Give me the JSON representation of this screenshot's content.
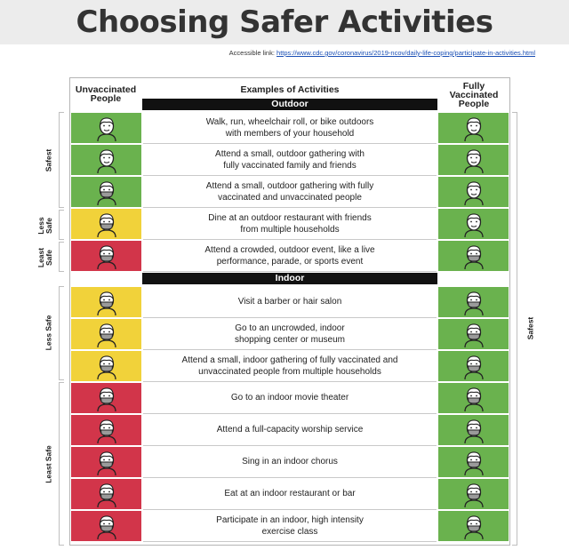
{
  "title": "Choosing Safer Activities",
  "accessible_label": "Accessible link:",
  "accessible_url": "https://www.cdc.gov/coronavirus/2019-ncov/daily-life-coping/participate-in-activities.html",
  "headers": {
    "unvaccinated": "Unvaccinated People",
    "examples": "Examples of Activities",
    "vaccinated": "Fully Vaccinated People"
  },
  "sections": {
    "outdoor": "Outdoor",
    "indoor": "Indoor"
  },
  "colors": {
    "green": "#6ab24e",
    "yellow": "#f1d23a",
    "red": "#d2354a"
  },
  "rows": [
    {
      "line1": "Walk, run, wheelchair roll, or bike outdoors",
      "line2": "with members of your household",
      "unvax": "green",
      "unvax_mask": false,
      "vax_mask": false
    },
    {
      "line1": "Attend a small, outdoor gathering with",
      "line2": "fully vaccinated family and friends",
      "unvax": "green",
      "unvax_mask": false,
      "vax_mask": false
    },
    {
      "line1": "Attend a small, outdoor gathering with fully",
      "line2": "vaccinated and unvaccinated people",
      "unvax": "green",
      "unvax_mask": true,
      "vax_mask": false
    },
    {
      "line1": "Dine at an outdoor restaurant with friends",
      "line2": "from multiple households",
      "unvax": "yellow",
      "unvax_mask": true,
      "vax_mask": false
    },
    {
      "line1": "Attend a crowded, outdoor event, like a live",
      "line2": "performance, parade, or sports event",
      "unvax": "red",
      "unvax_mask": true,
      "vax_mask": true
    },
    {
      "line1": "Visit a barber or hair salon",
      "line2": "",
      "unvax": "yellow",
      "unvax_mask": true,
      "vax_mask": true
    },
    {
      "line1": "Go to an uncrowded, indoor",
      "line2": "shopping center or museum",
      "unvax": "yellow",
      "unvax_mask": true,
      "vax_mask": true
    },
    {
      "line1": "Attend a small, indoor gathering of fully vaccinated and",
      "line2": "unvaccinated people from multiple households",
      "unvax": "yellow",
      "unvax_mask": true,
      "vax_mask": true
    },
    {
      "line1": "Go to an indoor movie theater",
      "line2": "",
      "unvax": "red",
      "unvax_mask": true,
      "vax_mask": true
    },
    {
      "line1": "Attend a full-capacity worship service",
      "line2": "",
      "unvax": "red",
      "unvax_mask": true,
      "vax_mask": true
    },
    {
      "line1": "Sing in an indoor chorus",
      "line2": "",
      "unvax": "red",
      "unvax_mask": true,
      "vax_mask": true
    },
    {
      "line1": "Eat at an indoor restaurant or bar",
      "line2": "",
      "unvax": "red",
      "unvax_mask": true,
      "vax_mask": true
    },
    {
      "line1": "Participate in an indoor, high intensity",
      "line2": "exercise class",
      "unvax": "red",
      "unvax_mask": true,
      "vax_mask": true
    }
  ],
  "side_labels": {
    "safest": "Safest",
    "less_safe": "Less Safe",
    "least_safe": "Least Safe",
    "less_safe_2": "Less Safe",
    "least_safe_2": "Least Safe",
    "right_safest": "Safest"
  }
}
